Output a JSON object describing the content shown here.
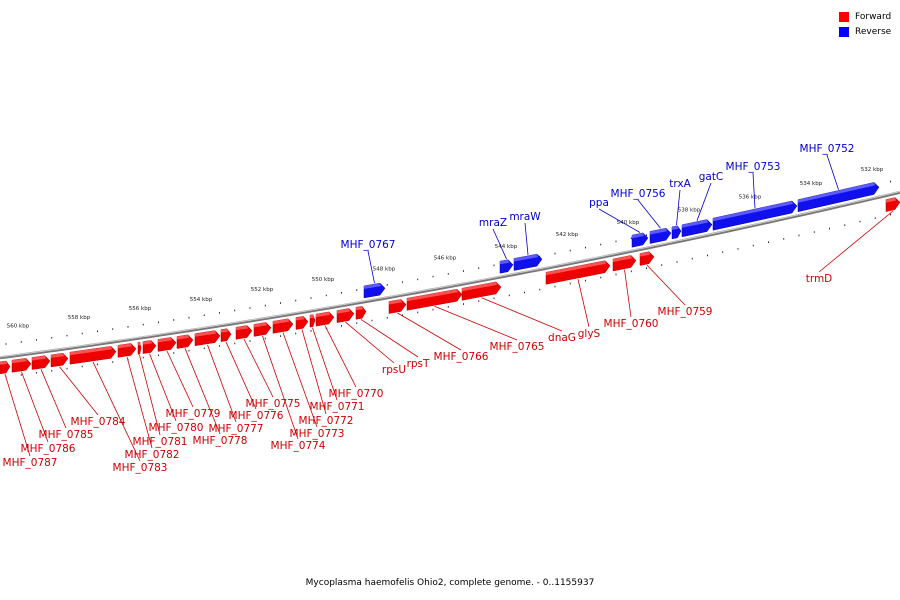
{
  "legend": {
    "forward": {
      "label": "Forward",
      "color": "#ff0000"
    },
    "reverse": {
      "label": "Reverse",
      "color": "#0000ff"
    }
  },
  "caption": "Mycoplasma haemofelis Ohio2, complete genome. - 0..1155937",
  "colors": {
    "forward_fill": "#ee0000",
    "forward_top": "#ff6060",
    "reverse_fill": "#1010ee",
    "reverse_top": "#6a6aff",
    "forward_label": "#cc0000",
    "reverse_label": "#0000cc",
    "backbone": "#777777"
  },
  "axis": {
    "unit": "kbp",
    "ticks": [
      560,
      558,
      556,
      554,
      552,
      550,
      548,
      546,
      544,
      542,
      540,
      538,
      536,
      534,
      532
    ],
    "tick_labels": [
      "560 kbp",
      "558 kbp",
      "556 kbp",
      "554 kbp",
      "552 kbp",
      "550 kbp",
      "548 kbp",
      "546 kbp",
      "544 kbp",
      "542 kbp",
      "540 kbp",
      "538 kbp",
      "536 kbp",
      "534 kbp",
      "532 kbp"
    ]
  },
  "genes": [
    {
      "name": "MHF_0787",
      "strand": "forward"
    },
    {
      "name": "MHF_0786",
      "strand": "forward"
    },
    {
      "name": "MHF_0785",
      "strand": "forward"
    },
    {
      "name": "MHF_0784",
      "strand": "forward"
    },
    {
      "name": "MHF_0783",
      "strand": "forward"
    },
    {
      "name": "MHF_0782",
      "strand": "forward"
    },
    {
      "name": "MHF_0781",
      "strand": "forward"
    },
    {
      "name": "MHF_0780",
      "strand": "forward"
    },
    {
      "name": "MHF_0779",
      "strand": "forward"
    },
    {
      "name": "MHF_0778",
      "strand": "forward"
    },
    {
      "name": "MHF_0777",
      "strand": "forward"
    },
    {
      "name": "MHF_0776",
      "strand": "forward"
    },
    {
      "name": "MHF_0775",
      "strand": "forward"
    },
    {
      "name": "MHF_0774",
      "strand": "forward"
    },
    {
      "name": "MHF_0773",
      "strand": "forward"
    },
    {
      "name": "MHF_0772",
      "strand": "forward"
    },
    {
      "name": "MHF_0771",
      "strand": "forward"
    },
    {
      "name": "MHF_0770",
      "strand": "forward"
    },
    {
      "name": "rpsU",
      "strand": "forward"
    },
    {
      "name": "rpsT",
      "strand": "forward"
    },
    {
      "name": "MHF_0767",
      "strand": "reverse"
    },
    {
      "name": "MHF_0766",
      "strand": "forward"
    },
    {
      "name": "MHF_0765",
      "strand": "forward"
    },
    {
      "name": "mraZ",
      "strand": "reverse"
    },
    {
      "name": "mraW",
      "strand": "reverse"
    },
    {
      "name": "dnaG",
      "strand": "forward"
    },
    {
      "name": "glyS",
      "strand": "forward"
    },
    {
      "name": "MHF_0760",
      "strand": "forward"
    },
    {
      "name": "MHF_0759",
      "strand": "forward"
    },
    {
      "name": "ppa",
      "strand": "reverse"
    },
    {
      "name": "MHF_0756",
      "strand": "reverse"
    },
    {
      "name": "trxA",
      "strand": "reverse"
    },
    {
      "name": "gatC",
      "strand": "reverse"
    },
    {
      "name": "MHF_0753",
      "strand": "reverse"
    },
    {
      "name": "MHF_0752",
      "strand": "reverse"
    },
    {
      "name": "trmD",
      "strand": "forward"
    }
  ]
}
